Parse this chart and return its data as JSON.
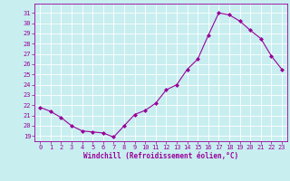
{
  "x": [
    0,
    1,
    2,
    3,
    4,
    5,
    6,
    7,
    8,
    9,
    10,
    11,
    12,
    13,
    14,
    15,
    16,
    17,
    18,
    19,
    20,
    21,
    22,
    23
  ],
  "y": [
    21.8,
    21.4,
    20.8,
    20.0,
    19.5,
    19.4,
    19.3,
    18.9,
    20.0,
    21.1,
    21.5,
    22.2,
    23.5,
    24.0,
    25.5,
    26.5,
    28.8,
    31.0,
    30.8,
    30.2,
    29.3,
    28.5,
    26.8,
    25.5
  ],
  "xlabel": "Windchill (Refroidissement éolien,°C)",
  "line_color": "#990099",
  "marker": "D",
  "marker_size": 2.0,
  "bg_color": "#c8eef0",
  "grid_color": "#ffffff",
  "tick_color": "#990099",
  "label_color": "#990099",
  "ylim": [
    18.5,
    31.9
  ],
  "yticks": [
    19,
    20,
    21,
    22,
    23,
    24,
    25,
    26,
    27,
    28,
    29,
    30,
    31
  ],
  "xlim": [
    -0.5,
    23.5
  ],
  "xticks": [
    0,
    1,
    2,
    3,
    4,
    5,
    6,
    7,
    8,
    9,
    10,
    11,
    12,
    13,
    14,
    15,
    16,
    17,
    18,
    19,
    20,
    21,
    22,
    23
  ],
  "linewidth": 0.8,
  "tick_fontsize": 5.0,
  "xlabel_fontsize": 5.5
}
